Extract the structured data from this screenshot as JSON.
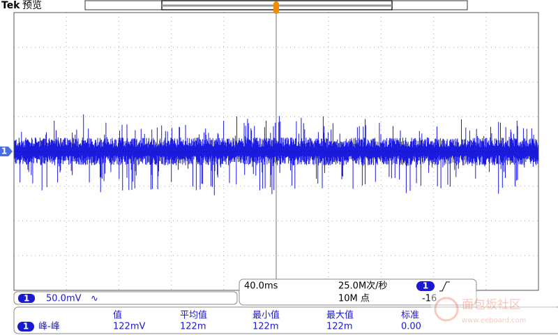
{
  "header": {
    "brand": "Tek",
    "mode": "预览"
  },
  "channel_marker": "1",
  "channel": {
    "number": "1",
    "scale": "50.0mV",
    "coupling": "∿"
  },
  "acquisition": {
    "time_scale": "40.0ms",
    "sample_rate": "25.0M次/秒",
    "trigger_channel": "1",
    "record_length": "10M 点",
    "trigger_level": "-16"
  },
  "measurements": {
    "headers": [
      "值",
      "平均值",
      "最小值",
      "最大值",
      "标准"
    ],
    "rows": [
      [
        "1",
        "峰-峰",
        "122mV",
        "122m",
        "122m",
        "122m",
        "0.00"
      ]
    ]
  },
  "watermark": {
    "title": "面包板社区",
    "url": "www.eeboard.com"
  }
}
